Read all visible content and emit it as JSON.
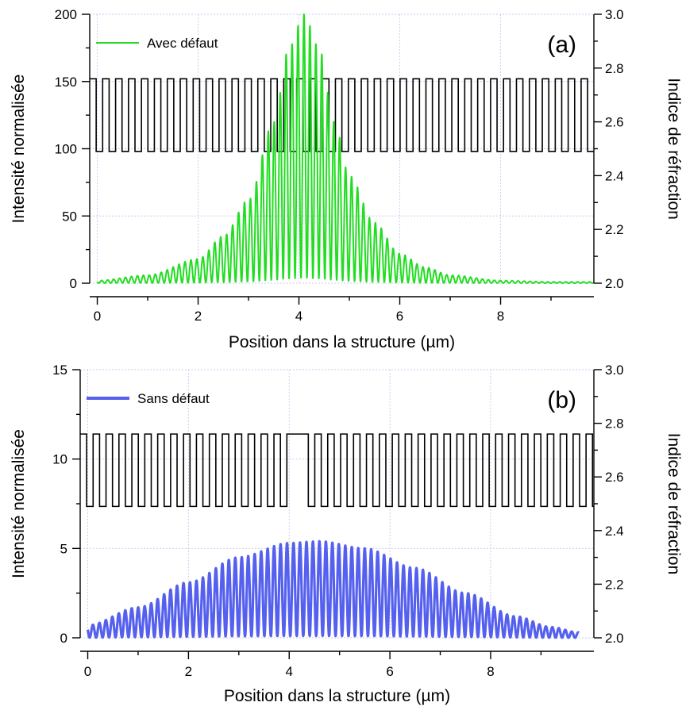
{
  "chart_data": [
    {
      "type": "line",
      "panel_label": "(a)",
      "xlabel": "Position dans la structure (µm)",
      "ylabel_left": "Intensité normalisée",
      "ylabel_right": "Indice de réfraction",
      "xlim": [
        -0.15,
        9.85
      ],
      "ylim_left": [
        0,
        200
      ],
      "ylim_right": [
        2.0,
        3.0
      ],
      "x_ticks": [
        "0",
        "2",
        "4",
        "6",
        "8"
      ],
      "y_ticks_left": [
        "0",
        "50",
        "100",
        "150",
        "200"
      ],
      "y_ticks_right": [
        "2.0",
        "2.2",
        "2.4",
        "2.6",
        "2.8",
        "3.0"
      ],
      "grid": true,
      "legend_position": "top-left",
      "series": [
        {
          "name": "Avec défaut",
          "axis": "left",
          "color": "#22dd22",
          "kind": "oscillating-envelope",
          "x_start": 0.0,
          "x_end": 9.85,
          "peak_x": 4.1,
          "peak_value": 200,
          "oscillation_period": 0.118,
          "envelope_points": [
            [
              0.0,
              2
            ],
            [
              1.0,
              6
            ],
            [
              2.0,
              18
            ],
            [
              2.5,
              35
            ],
            [
              3.0,
              62
            ],
            [
              3.5,
              120
            ],
            [
              3.8,
              175
            ],
            [
              4.1,
              200
            ],
            [
              4.4,
              175
            ],
            [
              4.7,
              120
            ],
            [
              5.0,
              80
            ],
            [
              5.5,
              45
            ],
            [
              6.0,
              22
            ],
            [
              6.5,
              12
            ],
            [
              7.0,
              6
            ],
            [
              8.0,
              2
            ],
            [
              9.0,
              1
            ],
            [
              9.85,
              1
            ]
          ]
        },
        {
          "name": "",
          "axis": "right",
          "color": "#000000",
          "kind": "index-profile",
          "x_start": -0.15,
          "x_end": 9.85,
          "n_low": 2.49,
          "n_high": 2.76,
          "period": 0.2565,
          "defect": null
        }
      ]
    },
    {
      "type": "line",
      "panel_label": "(b)",
      "xlabel": "Position dans la structure (µm)",
      "ylabel_left": "Intensité normalisée",
      "ylabel_right": "Indice de réfraction",
      "xlim": [
        -0.15,
        10.05
      ],
      "ylim_left": [
        0,
        15
      ],
      "ylim_right": [
        2.0,
        3.0
      ],
      "x_ticks": [
        "0",
        "2",
        "4",
        "6",
        "8"
      ],
      "y_ticks_left": [
        "0",
        "5",
        "10",
        "15"
      ],
      "y_ticks_right": [
        "2.0",
        "2.2",
        "2.4",
        "2.6",
        "2.8",
        "3.0"
      ],
      "grid": true,
      "legend_position": "top-left",
      "series": [
        {
          "name": "Sans défaut",
          "axis": "left",
          "color": "#5560ee",
          "kind": "oscillating-envelope",
          "x_start": 0.0,
          "x_end": 9.75,
          "peak_x": 4.6,
          "peak_value": 5.4,
          "oscillation_period": 0.1285,
          "envelope_points": [
            [
              0.0,
              0.7
            ],
            [
              1.0,
              1.7
            ],
            [
              2.0,
              3.1
            ],
            [
              3.0,
              4.5
            ],
            [
              4.0,
              5.3
            ],
            [
              4.6,
              5.4
            ],
            [
              5.5,
              5.0
            ],
            [
              6.5,
              3.9
            ],
            [
              7.5,
              2.5
            ],
            [
              8.5,
              1.2
            ],
            [
              9.2,
              0.6
            ],
            [
              9.75,
              0.3
            ]
          ]
        },
        {
          "name": "",
          "axis": "right",
          "color": "#000000",
          "kind": "index-profile",
          "x_start": -0.15,
          "x_end": 10.05,
          "n_low": 2.49,
          "n_high": 2.76,
          "period": 0.2565,
          "defect": {
            "x_start": 4.02,
            "x_end": 4.38,
            "n": 2.76
          }
        }
      ]
    }
  ]
}
